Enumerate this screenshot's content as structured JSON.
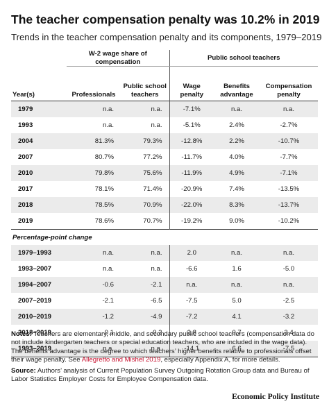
{
  "title": "The teacher compensation penalty was 10.2% in 2019",
  "subtitle": "Trends in the teacher compensation penalty and its components, 1979–2019",
  "chart_data": {
    "type": "table",
    "group_headers": {
      "w2": "W-2  wage share of compensation",
      "public_school": "Public school teachers"
    },
    "columns": [
      "Year(s)",
      "Professionals",
      "Public school teachers",
      "Wage penalty",
      "Benefits advantage",
      "Compensation penalty"
    ],
    "rows": [
      [
        "1979",
        "n.a.",
        "n.a.",
        "-7.1%",
        "n.a.",
        "n.a."
      ],
      [
        "1993",
        "n.a.",
        "n.a.",
        "-5.1%",
        "2.4%",
        "-2.7%"
      ],
      [
        "2004",
        "81.3%",
        "79.3%",
        "-12.8%",
        "2.2%",
        "-10.7%"
      ],
      [
        "2007",
        "80.7%",
        "77.2%",
        "-11.7%",
        "4.0%",
        "-7.7%"
      ],
      [
        "2010",
        "79.8%",
        "75.6%",
        "-11.9%",
        "4.9%",
        "-7.1%"
      ],
      [
        "2017",
        "78.1%",
        "71.4%",
        "-20.9%",
        "7.4%",
        "-13.5%"
      ],
      [
        "2018",
        "78.5%",
        "70.9%",
        "-22.0%",
        "8.3%",
        "-13.7%"
      ],
      [
        "2019",
        "78.6%",
        "70.7%",
        "-19.2%",
        "9.0%",
        "-10.2%"
      ]
    ],
    "pct_change_label": "Percentage-point change",
    "pct_rows": [
      [
        "1979–1993",
        "n.a.",
        "n.a.",
        "2.0",
        "n.a.",
        "n.a."
      ],
      [
        "1993–2007",
        "n.a.",
        "n.a.",
        "-6.6",
        "1.6",
        "-5.0"
      ],
      [
        "1994–2007",
        "-0.6",
        "-2.1",
        "n.a.",
        "n.a.",
        "n.a."
      ],
      [
        "2007–2019",
        "-2.1",
        "-6.5",
        "-7.5",
        "5.0",
        "-2.5"
      ],
      [
        "2010–2019",
        "-1.2",
        "-4.9",
        "-7.2",
        "4.1",
        "-3.2"
      ],
      [
        "2018–2019",
        "0.1",
        "-0.2",
        "2.8",
        "0.7",
        "3.4"
      ],
      [
        "1993–2019",
        "n.a.",
        "n.a.",
        "-14.1",
        "6.6",
        "-7.5"
      ]
    ]
  },
  "notes": {
    "notes_label": "Notes:",
    "notes_text_1": "Teachers are elementary, middle, and secondary public school teachers (compensation data do not include kindergarten teachers or special education teachers, who are included in the wage data). The benefits advantage is the degree to which teachers’ higher benefits relative to professionals offset their wage penalty. See",
    "notes_link": "Allegretto and Mishel 2019",
    "notes_text_2": ", especially Appendix A, for more details.",
    "source_label": "Source:",
    "source_text": "Authors’ analysis of Current Population Survey Outgoing Rotation Group data and Bureau of Labor Statistics Employer Costs for Employee Compensation data."
  },
  "brand": "Economic Policy Institute",
  "colors": {
    "shaded_row": "#ebebeb",
    "link": "#c8102e",
    "rule": "#333333"
  }
}
